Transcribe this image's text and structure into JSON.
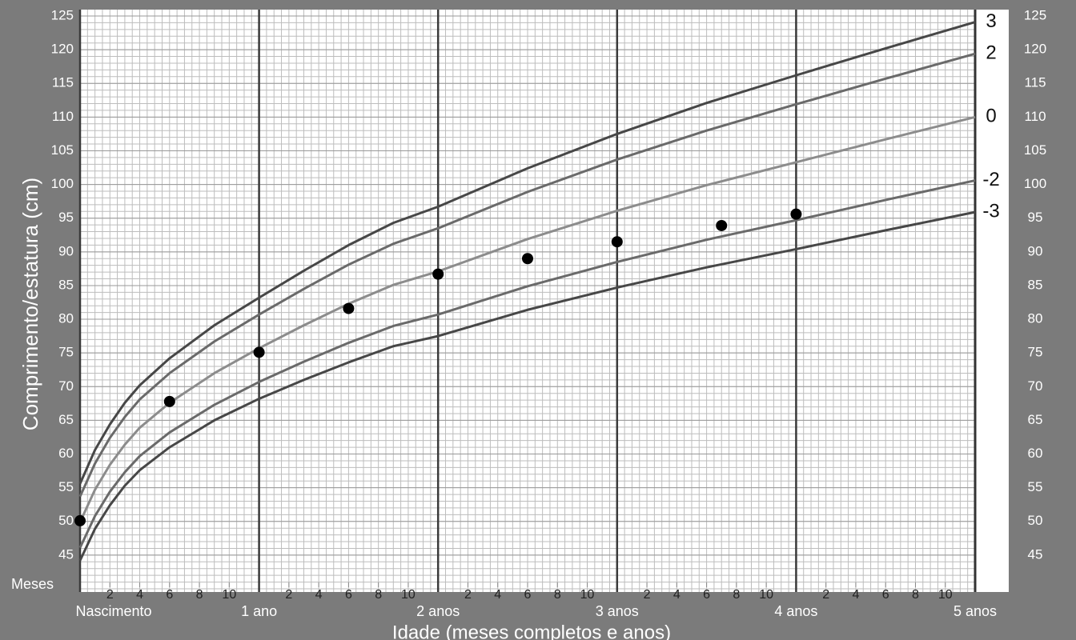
{
  "chart_data": {
    "type": "line",
    "y_label": "Comprimento/estatura (cm)",
    "x_label": "Idade (meses completos e anos)",
    "month_axis_label": "Meses",
    "x": [
      0,
      1,
      2,
      3,
      4,
      6,
      9,
      12,
      15,
      18,
      21,
      24,
      30,
      36,
      42,
      48,
      54,
      60
    ],
    "series": [
      {
        "name": "3",
        "color": "#474747",
        "values": [
          55.6,
          60.6,
          64.4,
          67.6,
          70.2,
          74.2,
          79.1,
          83.2,
          87.2,
          91.0,
          94.3,
          96.7,
          102.4,
          107.5,
          112.1,
          116.2,
          120.2,
          124.1
        ]
      },
      {
        "name": "2",
        "color": "#6a6a6a",
        "values": [
          53.7,
          58.6,
          62.4,
          65.5,
          68.1,
          72.0,
          76.7,
          80.7,
          84.5,
          88.1,
          91.2,
          93.5,
          98.9,
          103.7,
          108.0,
          111.9,
          115.7,
          119.4
        ]
      },
      {
        "name": "0",
        "color": "#8c8c8c",
        "values": [
          49.9,
          54.7,
          58.4,
          61.4,
          63.9,
          67.6,
          72.0,
          75.7,
          79.1,
          82.3,
          85.1,
          87.1,
          91.9,
          96.1,
          99.9,
          103.3,
          106.7,
          110.0
        ]
      },
      {
        "name": "-2",
        "color": "#6a6a6a",
        "values": [
          46.1,
          50.8,
          54.4,
          57.3,
          59.7,
          63.2,
          67.3,
          70.7,
          73.7,
          76.5,
          79.0,
          80.7,
          84.9,
          88.5,
          91.8,
          94.7,
          97.7,
          100.6
        ]
      },
      {
        "name": "-3",
        "color": "#474747",
        "values": [
          44.2,
          48.9,
          52.4,
          55.3,
          57.6,
          61.0,
          65.0,
          68.2,
          71.0,
          73.6,
          76.0,
          77.5,
          81.4,
          84.7,
          87.7,
          90.4,
          93.2,
          95.9
        ]
      }
    ],
    "points": {
      "color": "#000000",
      "x": [
        0,
        6,
        12,
        18,
        24,
        30,
        36,
        43,
        48
      ],
      "y": [
        50.1,
        67.8,
        75.1,
        81.6,
        86.7,
        89.0,
        91.5,
        93.9,
        95.6
      ]
    },
    "xlim": [
      0,
      60
    ],
    "ylim": [
      40,
      125
    ],
    "xticks": [
      {
        "value": 0,
        "label": "Nascimento"
      },
      {
        "value": 12,
        "label": "1 ano"
      },
      {
        "value": 24,
        "label": "2 anos"
      },
      {
        "value": 36,
        "label": "3 anos"
      },
      {
        "value": 48,
        "label": "4 anos"
      },
      {
        "value": 60,
        "label": "5 anos"
      }
    ],
    "month_ticks": [
      2,
      4,
      6,
      8,
      10,
      {
        "value": 14,
        "label": "2"
      },
      {
        "value": 16,
        "label": "4"
      },
      {
        "value": 18,
        "label": "6"
      },
      {
        "value": 20,
        "label": "8"
      },
      {
        "value": 22,
        "label": "10"
      },
      {
        "value": 26,
        "label": "2"
      },
      {
        "value": 28,
        "label": "4"
      },
      {
        "value": 30,
        "label": "6"
      },
      {
        "value": 32,
        "label": "8"
      },
      {
        "value": 34,
        "label": "10"
      },
      {
        "value": 38,
        "label": "2"
      },
      {
        "value": 40,
        "label": "4"
      },
      {
        "value": 42,
        "label": "6"
      },
      {
        "value": 44,
        "label": "8"
      },
      {
        "value": 46,
        "label": "10"
      },
      {
        "value": 50,
        "label": "2"
      },
      {
        "value": 52,
        "label": "4"
      },
      {
        "value": 54,
        "label": "6"
      },
      {
        "value": 56,
        "label": "8"
      },
      {
        "value": 58,
        "label": "10"
      }
    ],
    "yticks": [
      45,
      50,
      55,
      60,
      65,
      70,
      75,
      80,
      85,
      90,
      95,
      100,
      105,
      110,
      115,
      120,
      125
    ],
    "grid": true,
    "x_grid_step": 0.5,
    "y_grid_step": 1
  }
}
